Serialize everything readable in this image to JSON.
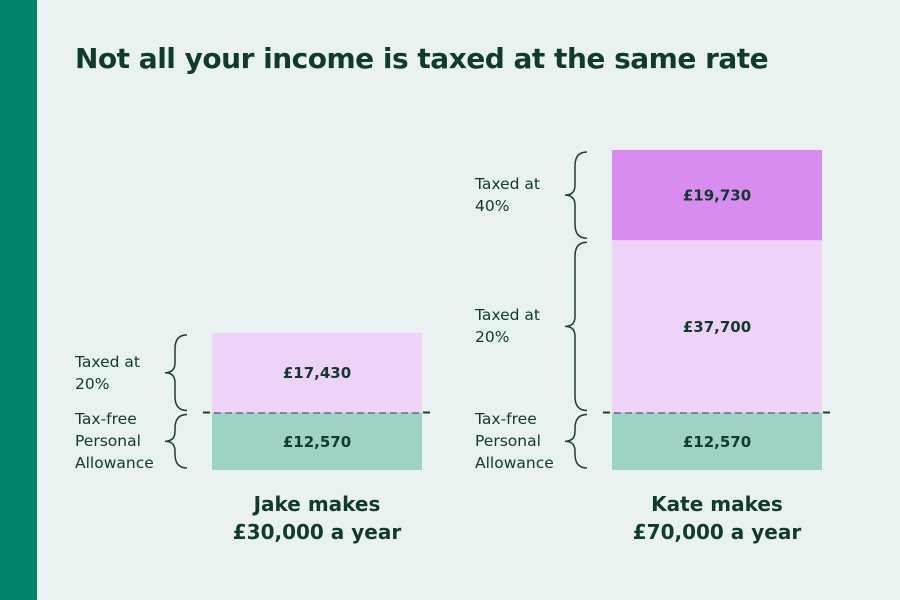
{
  "chart_data": {
    "type": "stacked_bar",
    "title": "Not all your income is taxed at the same rate",
    "categories": [
      "Jake makes £30,000 a year",
      "Kate makes £70,000 a year"
    ],
    "series": [
      {
        "name": "Tax-free Personal Allowance",
        "color": "#9dd2c6",
        "values": [
          12570,
          12570
        ],
        "value_labels": [
          "£12,570",
          "£12,570"
        ]
      },
      {
        "name": "Taxed at 20%",
        "color": "#efd2f8",
        "values": [
          17430,
          37700
        ],
        "value_labels": [
          "£17,430",
          "£37,700"
        ]
      },
      {
        "name": "Taxed at 40%",
        "color": "#d98cf0",
        "values": [
          null,
          19730
        ],
        "value_labels": [
          null,
          "£19,730"
        ]
      }
    ]
  }
}
